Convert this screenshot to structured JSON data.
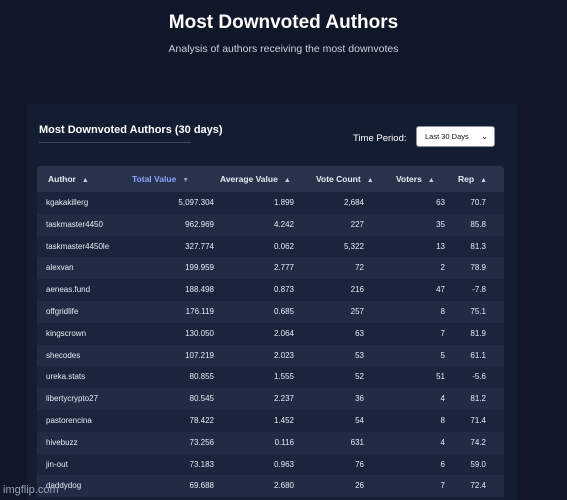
{
  "header": {
    "title": "Most Downvoted Authors",
    "subtitle": "Analysis of authors receiving the most downvotes"
  },
  "card": {
    "title": "Most Downvoted Authors (30 days)",
    "time_period_label": "Time Period:",
    "time_period_selected": "Last 30 Days"
  },
  "table": {
    "columns": [
      "Author",
      "Total Value",
      "Average Value",
      "Vote Count",
      "Voters",
      "Rep"
    ],
    "sorted_column": "Total Value",
    "rows": [
      [
        "kgakakillerg",
        "5,097.304",
        "1.899",
        "2,684",
        "63",
        "70.7"
      ],
      [
        "taskmaster4450",
        "962.969",
        "4.242",
        "227",
        "35",
        "85.8"
      ],
      [
        "taskmaster4450le",
        "327.774",
        "0.062",
        "5,322",
        "13",
        "81.3"
      ],
      [
        "alexvan",
        "199.959",
        "2.777",
        "72",
        "2",
        "78.9"
      ],
      [
        "aeneas.fund",
        "188.498",
        "0.873",
        "216",
        "47",
        "-7.8"
      ],
      [
        "offgridlife",
        "176.119",
        "0.685",
        "257",
        "8",
        "75.1"
      ],
      [
        "kingscrown",
        "130.050",
        "2.064",
        "63",
        "7",
        "81.9"
      ],
      [
        "shecodes",
        "107.219",
        "2.023",
        "53",
        "5",
        "61.1"
      ],
      [
        "ureka.stats",
        "80.855",
        "1.555",
        "52",
        "51",
        "-5.6"
      ],
      [
        "libertycrypto27",
        "80.545",
        "2.237",
        "36",
        "4",
        "81.2"
      ],
      [
        "pastorencina",
        "78.422",
        "1.452",
        "54",
        "8",
        "71.4"
      ],
      [
        "hivebuzz",
        "73.256",
        "0.116",
        "631",
        "4",
        "74.2"
      ],
      [
        "jin-out",
        "73.183",
        "0.963",
        "76",
        "6",
        "59.0"
      ],
      [
        "daddydog",
        "69.688",
        "2.680",
        "26",
        "7",
        "72.4"
      ]
    ]
  },
  "watermark": "imgflip.com",
  "colors": {
    "background": "#0f1729",
    "card": "#131d31",
    "header_row": "#27334b",
    "active_column": "#8fa3ff"
  },
  "icons": {
    "sort_up": "sort-up-icon",
    "sort_down": "sort-down-icon",
    "select_chevron": "chevron-down-icon"
  }
}
